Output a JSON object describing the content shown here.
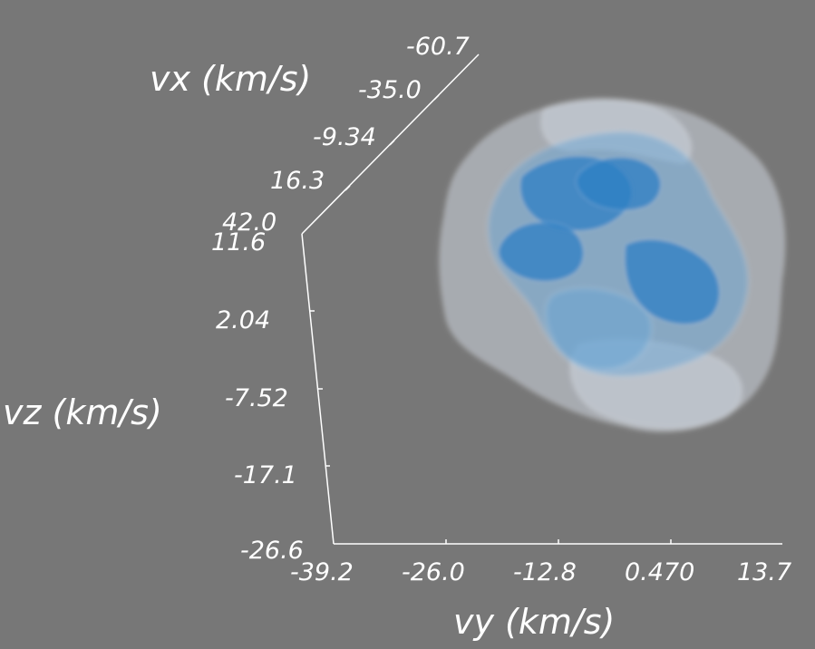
{
  "colors": {
    "background": "#777777",
    "axis": "#ffffff",
    "text": "#ffffff",
    "outer_shell": "#cdd6e0",
    "middle_shell": "#6aa6d6",
    "inner_core": "#2f7fc4"
  },
  "chart_data": {
    "type": "3d-isosurface",
    "grid": false,
    "legend": "none",
    "axes": {
      "vx": {
        "title": "vx (km/s)",
        "ticks": [
          "-60.7",
          "-35.0",
          "-9.34",
          "16.3",
          "42.0"
        ],
        "range": [
          42.0,
          -60.7
        ]
      },
      "vy": {
        "title": "vy (km/s)",
        "ticks": [
          "-39.2",
          "-26.0",
          "-12.8",
          "0.470",
          "13.7"
        ],
        "range": [
          -39.2,
          13.7
        ]
      },
      "vz": {
        "title": "vz (km/s)",
        "ticks": [
          "11.6",
          "2.04",
          "-7.52",
          "-17.1",
          "-26.6"
        ],
        "range": [
          11.6,
          -26.6
        ]
      }
    },
    "isosurfaces": [
      {
        "level": "outer",
        "color": "#cdd6e0",
        "opacity": 0.55
      },
      {
        "level": "middle",
        "color": "#6aa6d6",
        "opacity": 0.5
      },
      {
        "level": "inner",
        "color": "#2f7fc4",
        "opacity": 0.75
      }
    ]
  }
}
